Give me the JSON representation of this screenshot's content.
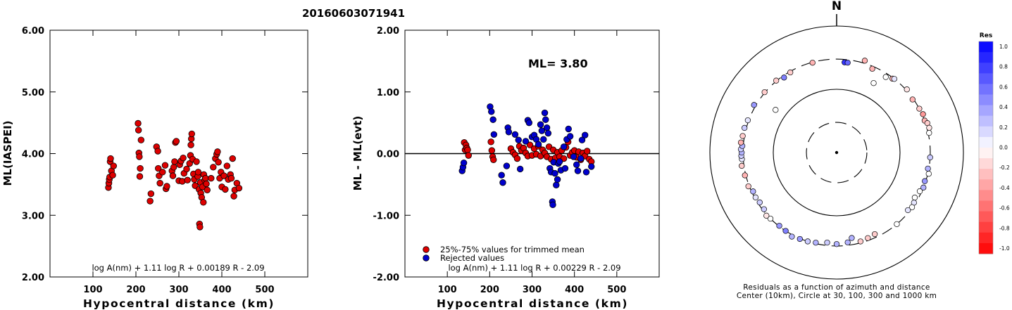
{
  "figure_title": "20160603071941",
  "colors": {
    "accepted": "#dd0000",
    "rejected": "#0000cc",
    "marker_outline": "#000000"
  },
  "chart_data": [
    {
      "type": "scatter",
      "title": "",
      "xlabel": "Hypocentral distance (km)",
      "ylabel": "ML(IASPEI)",
      "xlim": [
        0,
        600
      ],
      "ylim": [
        2.0,
        6.0
      ],
      "xticks": [
        100,
        200,
        300,
        400,
        500
      ],
      "yticks": [
        "2.00",
        "3.00",
        "4.00",
        "5.00",
        "6.00"
      ],
      "formula": "log A(nm) + 1.11 log R + 0.00189 R - 2.09",
      "grid": false,
      "points": [
        [
          136,
          3.45
        ],
        [
          137,
          3.52
        ],
        [
          138,
          3.58
        ],
        [
          139,
          3.62
        ],
        [
          140,
          3.87
        ],
        [
          141,
          3.92
        ],
        [
          143,
          3.72
        ],
        [
          146,
          3.65
        ],
        [
          148,
          3.8
        ],
        [
          205,
          4.49
        ],
        [
          206,
          4.38
        ],
        [
          207,
          4.01
        ],
        [
          208,
          3.95
        ],
        [
          209,
          3.63
        ],
        [
          210,
          3.76
        ],
        [
          212,
          4.22
        ],
        [
          233,
          3.23
        ],
        [
          235,
          3.35
        ],
        [
          248,
          4.11
        ],
        [
          251,
          4.04
        ],
        [
          252,
          3.76
        ],
        [
          254,
          3.64
        ],
        [
          256,
          3.52
        ],
        [
          262,
          3.7
        ],
        [
          268,
          3.81
        ],
        [
          270,
          3.43
        ],
        [
          272,
          3.47
        ],
        [
          284,
          3.72
        ],
        [
          286,
          3.64
        ],
        [
          288,
          3.78
        ],
        [
          290,
          3.87
        ],
        [
          292,
          4.18
        ],
        [
          294,
          4.2
        ],
        [
          300,
          3.56
        ],
        [
          302,
          3.82
        ],
        [
          305,
          3.88
        ],
        [
          308,
          3.55
        ],
        [
          310,
          3.93
        ],
        [
          312,
          3.68
        ],
        [
          318,
          3.75
        ],
        [
          320,
          3.57
        ],
        [
          325,
          3.84
        ],
        [
          327,
          3.97
        ],
        [
          328,
          4.14
        ],
        [
          329,
          4.24
        ],
        [
          330,
          4.32
        ],
        [
          332,
          3.91
        ],
        [
          334,
          3.67
        ],
        [
          336,
          3.58
        ],
        [
          338,
          3.48
        ],
        [
          341,
          3.87
        ],
        [
          344,
          3.63
        ],
        [
          345,
          3.7
        ],
        [
          347,
          3.42
        ],
        [
          348,
          2.86
        ],
        [
          349,
          2.81
        ],
        [
          350,
          3.53
        ],
        [
          351,
          3.36
        ],
        [
          353,
          3.29
        ],
        [
          355,
          3.46
        ],
        [
          357,
          3.21
        ],
        [
          358,
          3.66
        ],
        [
          360,
          3.57
        ],
        [
          362,
          3.6
        ],
        [
          364,
          3.51
        ],
        [
          366,
          3.41
        ],
        [
          375,
          3.6
        ],
        [
          380,
          3.78
        ],
        [
          385,
          3.92
        ],
        [
          388,
          3.99
        ],
        [
          390,
          4.03
        ],
        [
          392,
          3.86
        ],
        [
          395,
          3.6
        ],
        [
          398,
          3.7
        ],
        [
          400,
          3.46
        ],
        [
          405,
          3.64
        ],
        [
          408,
          3.42
        ],
        [
          412,
          3.8
        ],
        [
          415,
          3.58
        ],
        [
          420,
          3.66
        ],
        [
          422,
          3.6
        ],
        [
          425,
          3.92
        ],
        [
          428,
          3.31
        ],
        [
          430,
          3.41
        ],
        [
          435,
          3.52
        ],
        [
          440,
          3.44
        ]
      ]
    },
    {
      "type": "scatter",
      "title": "",
      "xlabel": "Hypocentral distance (km)",
      "ylabel": "ML - ML(evt)",
      "xlim": [
        0,
        600
      ],
      "ylim": [
        -2.0,
        2.0
      ],
      "xticks": [
        100,
        200,
        300,
        400,
        500
      ],
      "yticks": [
        "-2.00",
        "-1.00",
        "0.00",
        "1.00",
        "2.00"
      ],
      "annotation": "ML= 3.80",
      "reference_line": 0.0,
      "legend": [
        {
          "label": "25%-75% values for trimmed mean",
          "color_key": "accepted"
        },
        {
          "label": "Rejected values",
          "color_key": "rejected"
        }
      ],
      "legend_position": "bottom-left",
      "formula": "log A(nm) + 1.11 log R + 0.00229 R - 2.09",
      "grid": false,
      "accepted": [
        [
          140,
          0.18
        ],
        [
          142,
          0.06
        ],
        [
          144,
          0.14
        ],
        [
          146,
          0.09
        ],
        [
          148,
          0.06
        ],
        [
          150,
          -0.03
        ],
        [
          203,
          0.19
        ],
        [
          205,
          0.05
        ],
        [
          207,
          -0.05
        ],
        [
          209,
          -0.1
        ],
        [
          250,
          0.08
        ],
        [
          255,
          0.02
        ],
        [
          260,
          -0.02
        ],
        [
          265,
          -0.08
        ],
        [
          270,
          0.12
        ],
        [
          275,
          0.05
        ],
        [
          280,
          0.09
        ],
        [
          285,
          0.01
        ],
        [
          290,
          -0.04
        ],
        [
          295,
          0.14
        ],
        [
          300,
          -0.03
        ],
        [
          305,
          0.08
        ],
        [
          310,
          -0.01
        ],
        [
          315,
          0.12
        ],
        [
          320,
          -0.04
        ],
        [
          325,
          0.06
        ],
        [
          330,
          0.01
        ],
        [
          335,
          -0.05
        ],
        [
          340,
          0.11
        ],
        [
          345,
          -0.09
        ],
        [
          350,
          0.06
        ],
        [
          355,
          -0.07
        ],
        [
          360,
          0.02
        ],
        [
          365,
          -0.05
        ],
        [
          370,
          0.05
        ],
        [
          375,
          -0.08
        ],
        [
          380,
          0.1
        ],
        [
          385,
          0.19
        ],
        [
          390,
          -0.03
        ],
        [
          395,
          0.02
        ],
        [
          400,
          0.05
        ],
        [
          405,
          -0.06
        ],
        [
          410,
          0.03
        ],
        [
          415,
          -0.1
        ],
        [
          420,
          0.01
        ],
        [
          425,
          -0.04
        ],
        [
          430,
          0.04
        ],
        [
          435,
          -0.09
        ],
        [
          440,
          -0.13
        ]
      ],
      "rejected": [
        [
          135,
          -0.28
        ],
        [
          137,
          -0.22
        ],
        [
          139,
          -0.15
        ],
        [
          201,
          0.76
        ],
        [
          204,
          0.68
        ],
        [
          208,
          0.55
        ],
        [
          210,
          0.31
        ],
        [
          228,
          -0.35
        ],
        [
          231,
          -0.47
        ],
        [
          240,
          -0.2
        ],
        [
          243,
          0.42
        ],
        [
          245,
          0.35
        ],
        [
          260,
          0.31
        ],
        [
          268,
          0.22
        ],
        [
          272,
          -0.25
        ],
        [
          285,
          0.2
        ],
        [
          290,
          0.54
        ],
        [
          293,
          0.5
        ],
        [
          300,
          0.27
        ],
        [
          305,
          0.3
        ],
        [
          310,
          0.23
        ],
        [
          315,
          0.15
        ],
        [
          320,
          0.47
        ],
        [
          323,
          0.37
        ],
        [
          327,
          0.23
        ],
        [
          330,
          0.66
        ],
        [
          332,
          0.55
        ],
        [
          335,
          0.42
        ],
        [
          338,
          0.33
        ],
        [
          342,
          -0.24
        ],
        [
          345,
          -0.3
        ],
        [
          348,
          -0.78
        ],
        [
          349,
          -0.83
        ],
        [
          351,
          -0.14
        ],
        [
          354,
          -0.32
        ],
        [
          357,
          -0.51
        ],
        [
          360,
          -0.42
        ],
        [
          362,
          -0.16
        ],
        [
          365,
          -0.13
        ],
        [
          368,
          -0.27
        ],
        [
          375,
          0.11
        ],
        [
          378,
          -0.24
        ],
        [
          382,
          0.23
        ],
        [
          386,
          0.4
        ],
        [
          390,
          0.28
        ],
        [
          398,
          -0.05
        ],
        [
          405,
          -0.18
        ],
        [
          408,
          -0.28
        ],
        [
          415,
          -0.08
        ],
        [
          418,
          0.22
        ],
        [
          425,
          0.3
        ],
        [
          428,
          -0.3
        ],
        [
          440,
          -0.21
        ]
      ]
    },
    {
      "type": "scatter",
      "subtype": "polar",
      "title": "",
      "north_label": "N",
      "caption_lines": [
        "Residuals as a function of azimuth and distance",
        "Center (10km), Circle at 30, 100, 300 and 1000 km"
      ],
      "rings_km": [
        30,
        100,
        300,
        1000
      ],
      "ring_styles": [
        "dashed",
        "solid",
        "dashed",
        "solid"
      ],
      "colorbar": {
        "title": "Res",
        "min": -1.0,
        "max": 1.0,
        "tick_labels": [
          "1.0",
          "0.8",
          "0.6",
          "0.4",
          "0.2",
          "0.0",
          "-0.2",
          "-0.4",
          "-0.6",
          "-0.8",
          "-1.0"
        ],
        "positive_color": "#0000ff",
        "negative_color": "#ff0000"
      },
      "stations_azimuth_deg_distance_km_residual": [
        [
          5,
          270,
          0.8
        ],
        [
          7,
          270,
          0.6
        ],
        [
          17,
          330,
          -0.3
        ],
        [
          23,
          275,
          -0.3
        ],
        [
          28,
          175,
          0.0
        ],
        [
          33,
          265,
          0.0
        ],
        [
          37,
          290,
          -0.3
        ],
        [
          38,
          300,
          0.1
        ],
        [
          48,
          310,
          -0.1
        ],
        [
          55,
          290,
          -0.3
        ],
        [
          62,
          300,
          -0.2
        ],
        [
          66,
          310,
          -0.4
        ],
        [
          70,
          300,
          -0.3
        ],
        [
          72,
          320,
          -0.2
        ],
        [
          75,
          325,
          -0.1
        ],
        [
          78,
          310,
          0.0
        ],
        [
          93,
          300,
          0.2
        ],
        [
          100,
          290,
          0.3
        ],
        [
          103,
          310,
          0.0
        ],
        [
          108,
          290,
          0.4
        ],
        [
          112,
          300,
          0.3
        ],
        [
          115,
          280,
          0.0
        ],
        [
          120,
          265,
          0.0
        ],
        [
          123,
          285,
          0.1
        ],
        [
          126,
          295,
          0.0
        ],
        [
          129,
          280,
          0.1
        ],
        [
          140,
          300,
          0.0
        ],
        [
          155,
          265,
          -0.2
        ],
        [
          160,
          275,
          -0.2
        ],
        [
          165,
          285,
          -0.2
        ],
        [
          170,
          235,
          0.3
        ],
        [
          173,
          270,
          0.3
        ],
        [
          180,
          280,
          0.3
        ],
        [
          186,
          270,
          0.2
        ],
        [
          193,
          290,
          0.3
        ],
        [
          198,
          300,
          0.2
        ],
        [
          203,
          305,
          0.4
        ],
        [
          208,
          320,
          0.3
        ],
        [
          213,
          300,
          0.5
        ],
        [
          218,
          295,
          0.4
        ],
        [
          225,
          300,
          0.0
        ],
        [
          228,
          310,
          -0.1
        ],
        [
          232,
          285,
          0.2
        ],
        [
          237,
          280,
          0.2
        ],
        [
          241,
          290,
          0.1
        ],
        [
          245,
          285,
          0.3
        ],
        [
          249,
          310,
          -0.2
        ],
        [
          256,
          310,
          -0.3
        ],
        [
          262,
          325,
          -0.2
        ],
        [
          266,
          315,
          0.1
        ],
        [
          268,
          320,
          0.2
        ],
        [
          270,
          315,
          0.3
        ],
        [
          272,
          325,
          0.2
        ],
        [
          274,
          310,
          0.3
        ],
        [
          276,
          330,
          -0.3
        ],
        [
          280,
          320,
          -0.2
        ],
        [
          285,
          320,
          0.2
        ],
        [
          290,
          310,
          0.1
        ],
        [
          300,
          320,
          0.4
        ],
        [
          305,
          150,
          0.0
        ],
        [
          310,
          305,
          -0.2
        ],
        [
          320,
          305,
          -0.2
        ],
        [
          325,
          280,
          0.5
        ],
        [
          330,
          290,
          -0.2
        ],
        [
          345,
          295,
          -0.3
        ]
      ]
    }
  ]
}
